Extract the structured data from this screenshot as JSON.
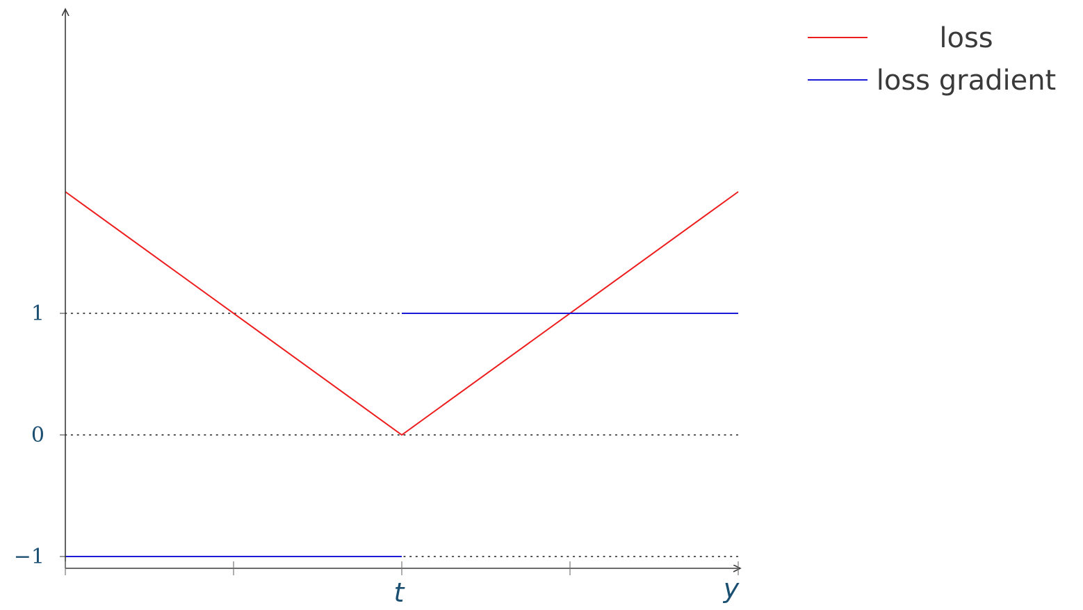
{
  "chart_data": {
    "type": "line",
    "xlabel": "y",
    "x_tick_labels": [
      {
        "x": 0,
        "label": "t"
      }
    ],
    "x_ticks": [
      -1,
      -0.5,
      0,
      0.5,
      1
    ],
    "xlim": [
      -1,
      1
    ],
    "ylim": [
      -1.1,
      3.5
    ],
    "y_ticks": [
      {
        "value": -1,
        "label": "−1"
      },
      {
        "value": 0,
        "label": "0"
      },
      {
        "value": 1,
        "label": "1"
      }
    ],
    "grid": "dotted horizontal lines at y = -1, 0, 1",
    "legend_position": "top-right",
    "series": [
      {
        "name": "loss",
        "color": "#ee1c1c",
        "segments": [
          [
            [
              -1,
              2
            ],
            [
              0,
              0
            ],
            [
              1,
              2
            ]
          ]
        ]
      },
      {
        "name": "loss gradient",
        "color": "#1a1ad6",
        "segments": [
          [
            [
              -1,
              -1
            ],
            [
              0,
              -1
            ]
          ],
          [
            [
              0,
              1
            ],
            [
              1,
              1
            ]
          ]
        ]
      }
    ]
  }
}
